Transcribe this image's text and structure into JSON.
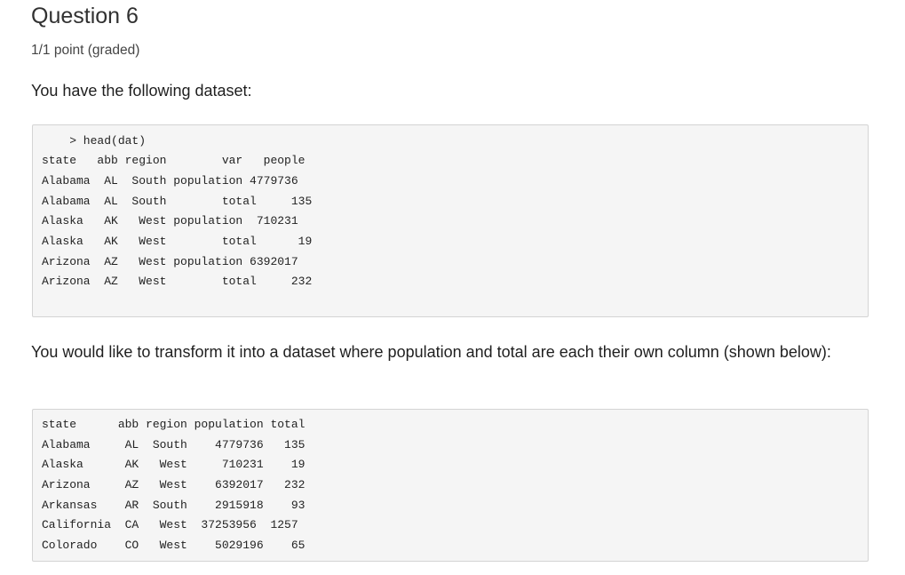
{
  "question": {
    "title": "Question 6",
    "points": "1/1 point (graded)"
  },
  "intro_text": "You have the following dataset:",
  "dataset_long": {
    "lines": [
      "    > head(dat)",
      "state   abb region        var   people",
      "Alabama  AL  South population 4779736",
      "Alabama  AL  South        total     135",
      "Alaska   AK   West population  710231",
      "Alaska   AK   West        total      19",
      "Arizona  AZ   West population 6392017",
      "Arizona  AZ   West        total     232"
    ]
  },
  "transform_text": "You would like to transform it into a dataset where population and total are each their own column (shown below):",
  "dataset_wide": {
    "lines": [
      "state      abb region population total",
      "Alabama     AL  South    4779736   135",
      "Alaska      AK   West     710231    19",
      "Arizona     AZ   West    6392017   232",
      "Arkansas    AR  South    2915918    93",
      "California  CA   West  37253956  1257",
      "Colorado    CO   West    5029196    65"
    ]
  }
}
